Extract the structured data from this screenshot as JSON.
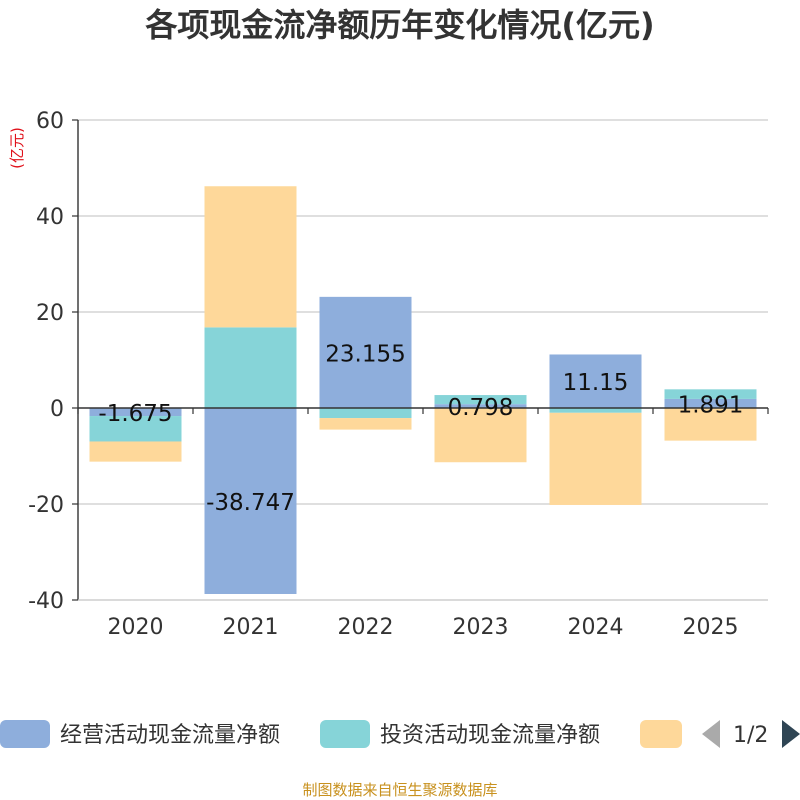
{
  "chart_data": {
    "type": "bar",
    "title": "各项现金流净额历年变化情况(亿元)",
    "ylabel": "(亿元)",
    "ylim": [
      -40,
      60
    ],
    "yticks": [
      -40,
      -20,
      0,
      20,
      40,
      60
    ],
    "categories": [
      "2020",
      "2021",
      "2022",
      "2023",
      "2024",
      "2025"
    ],
    "series": [
      {
        "name": "经营活动现金流量净额",
        "color": "#8eaedc",
        "values": [
          -1.675,
          -38.747,
          23.155,
          0.798,
          11.15,
          1.891
        ],
        "labels": [
          "-1.675",
          "-38.747",
          "23.155",
          "0.798",
          "11.15",
          "1.891"
        ]
      },
      {
        "name": "投资活动现金流量净额",
        "color": "#86d4d8",
        "values": [
          -5.3,
          16.8,
          -2.1,
          1.9,
          -1.0,
          2.0
        ]
      },
      {
        "name": "",
        "color": "#fed89a",
        "values": [
          -4.2,
          29.4,
          -2.4,
          -11.3,
          -19.2,
          -6.8
        ]
      }
    ],
    "legend": {
      "page": "1/2"
    },
    "source": "制图数据来自恒生聚源数据库"
  }
}
